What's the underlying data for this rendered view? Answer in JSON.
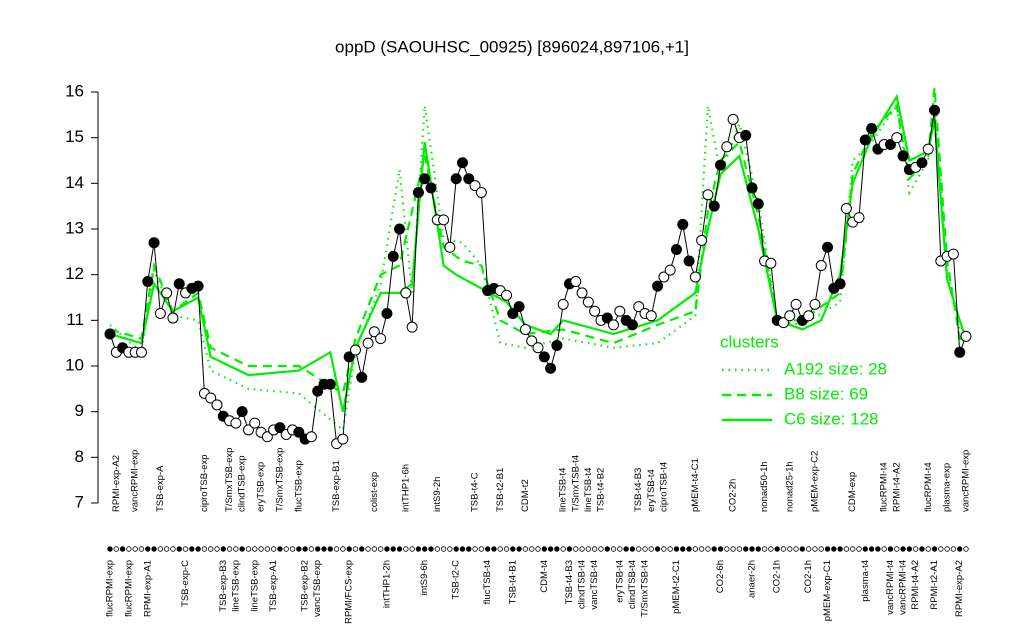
{
  "chart_data": {
    "type": "line",
    "title": "oppD (SAOUHSC_00925) [896024,897106,+1]",
    "ylim": [
      7,
      16
    ],
    "yticks": [
      7,
      8,
      9,
      10,
      11,
      12,
      13,
      14,
      15,
      16
    ],
    "categories_top": [
      null,
      "RPMI-exp-A2",
      null,
      null,
      "vancRPMI-exp",
      null,
      null,
      null,
      "TSB-exp-A",
      null,
      null,
      null,
      null,
      null,
      null,
      "ciproTSB-exp",
      null,
      null,
      null,
      "T/SmxTSB-exp",
      null,
      "clindTSB-exp",
      null,
      null,
      "eryTSB-exp",
      null,
      null,
      "T/SmxTSB-exp",
      null,
      null,
      "flucTSB-exp",
      null,
      null,
      null,
      null,
      null,
      "TSB-exp-B1",
      null,
      null,
      null,
      null,
      null,
      "colist-exp",
      null,
      null,
      null,
      null,
      "intTHP1-6h",
      null,
      null,
      null,
      null,
      "intS9-2h",
      null,
      null,
      null,
      null,
      null,
      "TSB-t4-C",
      null,
      null,
      null,
      "TSB-t2-B1",
      null,
      null,
      null,
      "CDM-t2",
      null,
      null,
      null,
      null,
      null,
      "lineTSB-t4",
      null,
      "T/SmxTSB-t4",
      null,
      "lineTSB-t4",
      null,
      "TSB-t4-B2",
      null,
      null,
      null,
      null,
      null,
      "TSB-t4-B3",
      null,
      "eryTSB-t4",
      null,
      "ciproTSB-t4",
      null,
      null,
      null,
      null,
      "pMEM-t4-C1",
      null,
      null,
      null,
      null,
      null,
      "CO2-2h",
      null,
      null,
      null,
      null,
      "nonad50-1h",
      null,
      null,
      null,
      "nonad25-1h",
      null,
      null,
      null,
      "pMEM-exp-C2",
      null,
      null,
      null,
      null,
      null,
      "CDM-exp",
      null,
      null,
      null,
      null,
      "flucRPMI-t4",
      null,
      "RPMI-t4-A2",
      null,
      null,
      null,
      null,
      "flucRPMI-t4",
      null,
      null,
      "plasma-exp",
      null,
      null,
      "vancRPMI-exp"
    ],
    "categories_bottom": [
      "flucRPMI-exp",
      null,
      null,
      "flucRPMI-exp",
      null,
      null,
      "RPMI-exp-A1",
      null,
      null,
      null,
      null,
      null,
      "TSB-exp-C",
      null,
      null,
      null,
      null,
      null,
      "TSB-exp-B3",
      null,
      "lineTSB-exp",
      null,
      null,
      "lineTSB-exp",
      null,
      null,
      "TSB-exp-A1",
      null,
      null,
      null,
      null,
      "TSB-exp-B2",
      null,
      "vancTSB-exp",
      null,
      null,
      null,
      null,
      "RPMI/FCS-exp",
      null,
      null,
      null,
      null,
      null,
      "intTHP1-2h",
      null,
      null,
      null,
      null,
      null,
      "intS9-6h",
      null,
      null,
      null,
      null,
      "TSB-t2-C",
      null,
      null,
      null,
      null,
      "flucTSB-t4",
      null,
      null,
      null,
      "TSB-t4-B1",
      null,
      null,
      null,
      null,
      "CDM-t4",
      null,
      null,
      null,
      "TSB-t4-B3",
      null,
      "clindTSB-t4",
      null,
      "vancTSB-t4",
      null,
      null,
      null,
      "eryTSB-t4",
      null,
      "clindTSB-t4",
      null,
      "T/SmxTSB-t4",
      null,
      null,
      null,
      null,
      "pMEM-t2-C1",
      null,
      null,
      null,
      null,
      null,
      null,
      "CO2-6h",
      null,
      null,
      null,
      null,
      "anaer-2h",
      null,
      null,
      null,
      "CO2-1h",
      null,
      null,
      null,
      null,
      "CO2-1h",
      null,
      null,
      "pMEM-exp-C1",
      null,
      null,
      null,
      null,
      null,
      "plasma-t4",
      null,
      null,
      null,
      "vancRPMI-t4",
      null,
      "vancRPMI-t4",
      null,
      "RPMI-t4-A2",
      null,
      null,
      "RPMI-t2-A1",
      null,
      null,
      null,
      "RPMI-exp-A2",
      null
    ],
    "legend_title": "clusters",
    "series": [
      {
        "color": "#000000",
        "values": [
          10.7,
          10.3,
          10.4,
          10.3,
          10.3,
          10.3,
          11.85,
          12.7,
          11.15,
          11.6,
          11.05,
          11.8,
          11.6,
          11.7,
          11.75,
          9.4,
          9.3,
          9.15,
          8.9,
          8.8,
          8.75,
          9.0,
          8.6,
          8.75,
          8.55,
          8.45,
          8.6,
          8.65,
          8.5,
          8.6,
          8.55,
          8.4,
          8.45,
          9.45,
          9.6,
          9.6,
          8.3,
          8.4,
          10.2,
          10.35,
          9.75,
          10.5,
          10.75,
          10.6,
          11.15,
          12.4,
          13.0,
          11.6,
          10.85,
          13.8,
          14.1,
          13.9,
          13.2,
          13.2,
          12.6,
          14.1,
          14.45,
          14.1,
          13.95,
          13.8,
          11.65,
          11.7,
          11.65,
          11.55,
          11.15,
          11.3,
          10.8,
          10.55,
          10.4,
          10.2,
          9.95,
          10.45,
          11.35,
          11.8,
          11.85,
          11.6,
          11.4,
          11.2,
          11.0,
          11.05,
          10.9,
          11.2,
          11.0,
          10.9,
          11.3,
          11.15,
          11.1,
          11.75,
          11.95,
          12.1,
          12.55,
          13.1,
          12.3,
          11.95,
          12.75,
          13.75,
          13.5,
          14.4,
          14.8,
          15.4,
          15.0,
          15.05,
          13.9,
          13.55,
          12.3,
          12.25,
          11.0,
          10.95,
          11.1,
          11.35,
          11.0,
          11.1,
          11.35,
          12.2,
          12.6,
          11.7,
          11.8,
          13.45,
          13.15,
          13.25,
          14.95,
          15.2,
          14.75,
          14.85,
          14.85,
          15.0,
          14.6,
          14.3,
          14.35,
          14.45,
          14.75,
          15.6,
          12.3,
          12.4,
          12.45,
          10.3,
          10.65
        ],
        "filled": [
          true,
          false,
          true,
          false,
          false,
          false,
          true,
          true,
          false,
          false,
          false,
          true,
          false,
          true,
          true,
          false,
          false,
          false,
          true,
          false,
          false,
          true,
          false,
          false,
          false,
          false,
          false,
          true,
          false,
          false,
          true,
          true,
          false,
          true,
          true,
          true,
          false,
          false,
          true,
          false,
          true,
          false,
          false,
          false,
          true,
          true,
          true,
          false,
          false,
          true,
          true,
          true,
          false,
          false,
          false,
          true,
          true,
          true,
          false,
          false,
          true,
          true,
          false,
          false,
          true,
          true,
          false,
          false,
          false,
          true,
          true,
          true,
          false,
          true,
          false,
          false,
          false,
          false,
          false,
          true,
          false,
          false,
          true,
          true,
          false,
          false,
          false,
          true,
          false,
          false,
          true,
          true,
          true,
          false,
          false,
          false,
          true,
          true,
          false,
          false,
          false,
          true,
          true,
          true,
          false,
          false,
          true,
          false,
          false,
          false,
          true,
          false,
          false,
          false,
          true,
          true,
          true,
          false,
          false,
          false,
          true,
          true,
          true,
          false,
          true,
          false,
          true,
          true,
          false,
          true,
          false,
          true,
          false,
          false,
          false,
          true,
          false
        ]
      },
      {
        "name": "A192 size: 28",
        "color": "#00ee00",
        "style": "dotted",
        "x": [
          0,
          5,
          7,
          10,
          14,
          16,
          22,
          30,
          37,
          39,
          43,
          46,
          48,
          50,
          53,
          56,
          59,
          62,
          66,
          72,
          80,
          87,
          93,
          95,
          97,
          100,
          103,
          106,
          110,
          116,
          118,
          121,
          125,
          127,
          130,
          131,
          133,
          135,
          136
        ],
        "values": [
          10.9,
          10.3,
          12.1,
          11.1,
          11.0,
          9.9,
          9.5,
          9.4,
          8.6,
          10.3,
          11.8,
          14.3,
          11.6,
          15.7,
          12.8,
          12.7,
          12.2,
          10.5,
          10.4,
          10.6,
          10.4,
          10.5,
          11.1,
          15.7,
          14.2,
          15.3,
          13.6,
          11.0,
          10.9,
          11.4,
          14.5,
          14.9,
          15.7,
          13.8,
          14.5,
          15.8,
          12.1,
          10.8,
          10.5
        ]
      },
      {
        "name": "B8 size: 69",
        "color": "#00ee00",
        "style": "dashed",
        "x": [
          0,
          5,
          7,
          10,
          14,
          16,
          22,
          30,
          37,
          39,
          43,
          46,
          50,
          53,
          56,
          59,
          62,
          66,
          72,
          80,
          87,
          93,
          95,
          97,
          100,
          103,
          106,
          110,
          116,
          118,
          121,
          125,
          127,
          130,
          131,
          133,
          135,
          136
        ],
        "values": [
          10.8,
          10.6,
          12.2,
          11.2,
          11.6,
          10.4,
          10.0,
          10.0,
          9.4,
          10.6,
          12.0,
          12.2,
          14.6,
          12.6,
          12.3,
          12.2,
          11.0,
          10.7,
          10.8,
          10.5,
          10.9,
          11.2,
          13.4,
          14.5,
          14.9,
          13.3,
          11.0,
          11.0,
          11.6,
          14.2,
          15.1,
          15.7,
          14.1,
          14.6,
          16.1,
          12.3,
          10.6,
          10.6
        ]
      },
      {
        "name": "C6 size: 128",
        "color": "#00ee00",
        "style": "solid",
        "x": [
          0,
          5,
          7,
          10,
          14,
          16,
          22,
          30,
          35,
          37,
          39,
          43,
          46,
          48,
          50,
          53,
          55,
          59,
          63,
          66,
          70,
          72,
          80,
          87,
          93,
          95,
          97,
          100,
          103,
          106,
          110,
          113,
          116,
          118,
          121,
          125,
          127,
          130,
          131,
          133,
          135,
          136
        ],
        "values": [
          10.7,
          10.5,
          11.8,
          11.2,
          11.5,
          10.2,
          9.8,
          9.9,
          10.3,
          9.0,
          10.4,
          11.6,
          11.6,
          11.8,
          14.9,
          12.2,
          12.0,
          11.7,
          11.4,
          10.9,
          10.7,
          11.0,
          10.7,
          11.0,
          11.6,
          13.0,
          14.2,
          14.6,
          13.0,
          11.0,
          10.8,
          11.0,
          12.0,
          14.0,
          15.0,
          15.9,
          14.5,
          14.7,
          15.4,
          11.9,
          11.0,
          10.6
        ]
      }
    ]
  }
}
